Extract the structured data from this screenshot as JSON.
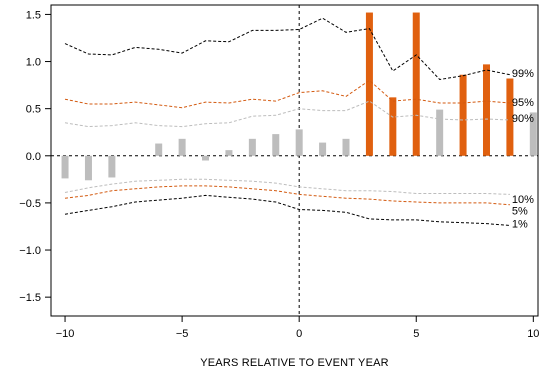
{
  "chart_data": {
    "type": "bar",
    "xlabel": "YEARS RELATIVE TO EVENT YEAR",
    "ylabel": "",
    "xlim": [
      -10.6,
      10.2
    ],
    "ylim": [
      -1.7,
      1.6
    ],
    "xticks": [
      -10,
      -5,
      0,
      5,
      10
    ],
    "xtick_labels": [
      "−10",
      "−5",
      "0",
      "5",
      "10"
    ],
    "yticks": [
      -1.5,
      -1.0,
      -0.5,
      0.0,
      0.5,
      1.0,
      1.5
    ],
    "ytick_labels": [
      "−1.5",
      "−1.0",
      "−0.5",
      "0.0",
      "0.5",
      "1.0",
      "1.5"
    ],
    "colors": {
      "significant": "#e0600f",
      "not_significant": "#bdbdbd",
      "p99": "#000000",
      "p95": "#d35a10",
      "p90": "#bdbdbd",
      "p10": "#bdbdbd",
      "p5": "#d35a10",
      "p1": "#000000"
    },
    "bars": [
      {
        "x": -10,
        "value": -0.24,
        "significant": false
      },
      {
        "x": -9,
        "value": -0.26,
        "significant": false
      },
      {
        "x": -8,
        "value": -0.23,
        "significant": false
      },
      {
        "x": -6,
        "value": 0.13,
        "significant": false
      },
      {
        "x": -5,
        "value": 0.18,
        "significant": false
      },
      {
        "x": -4,
        "value": -0.05,
        "significant": false
      },
      {
        "x": -3,
        "value": 0.06,
        "significant": false
      },
      {
        "x": -2,
        "value": 0.18,
        "significant": false
      },
      {
        "x": -1,
        "value": 0.23,
        "significant": false
      },
      {
        "x": 0,
        "value": 0.28,
        "significant": false
      },
      {
        "x": 1,
        "value": 0.14,
        "significant": false
      },
      {
        "x": 2,
        "value": 0.18,
        "significant": false
      },
      {
        "x": 3,
        "value": 1.52,
        "significant": true
      },
      {
        "x": 4,
        "value": 0.62,
        "significant": true
      },
      {
        "x": 5,
        "value": 1.52,
        "significant": true
      },
      {
        "x": 6,
        "value": 0.49,
        "significant": false
      },
      {
        "x": 7,
        "value": 0.86,
        "significant": true
      },
      {
        "x": 8,
        "value": 0.97,
        "significant": true
      },
      {
        "x": 9,
        "value": 0.82,
        "significant": true
      },
      {
        "x": 10,
        "value": 0.46,
        "significant": false
      }
    ],
    "bands": [
      {
        "label": "99%",
        "style": "p99",
        "x": [
          -10,
          -9,
          -8,
          -7,
          -6,
          -5,
          -4,
          -3,
          -2,
          -1,
          0,
          1,
          2,
          3,
          4,
          5,
          6,
          7,
          8,
          9
        ],
        "y": [
          1.19,
          1.08,
          1.07,
          1.15,
          1.13,
          1.09,
          1.22,
          1.21,
          1.33,
          1.33,
          1.34,
          1.46,
          1.31,
          1.35,
          0.9,
          1.07,
          0.81,
          0.85,
          0.91,
          0.86
        ]
      },
      {
        "label": "95%",
        "style": "p95",
        "x": [
          -10,
          -9,
          -8,
          -7,
          -6,
          -5,
          -4,
          -3,
          -2,
          -1,
          0,
          1,
          2,
          3,
          4,
          5,
          6,
          7,
          8,
          9
        ],
        "y": [
          0.6,
          0.55,
          0.55,
          0.57,
          0.54,
          0.51,
          0.57,
          0.56,
          0.6,
          0.58,
          0.67,
          0.69,
          0.63,
          0.8,
          0.58,
          0.6,
          0.56,
          0.56,
          0.58,
          0.56
        ]
      },
      {
        "label": "90%",
        "style": "p90",
        "x": [
          -10,
          -9,
          -8,
          -7,
          -6,
          -5,
          -4,
          -3,
          -2,
          -1,
          0,
          1,
          2,
          3,
          4,
          5,
          6,
          7,
          8,
          9
        ],
        "y": [
          0.35,
          0.31,
          0.32,
          0.35,
          0.32,
          0.31,
          0.34,
          0.35,
          0.42,
          0.43,
          0.5,
          0.48,
          0.48,
          0.58,
          0.41,
          0.43,
          0.39,
          0.38,
          0.39,
          0.38
        ]
      },
      {
        "label": "10%",
        "style": "p10",
        "x": [
          -10,
          -9,
          -8,
          -7,
          -6,
          -5,
          -4,
          -3,
          -2,
          -1,
          0,
          1,
          2,
          3,
          4,
          5,
          6,
          7,
          8,
          9
        ],
        "y": [
          -0.39,
          -0.34,
          -0.3,
          -0.27,
          -0.26,
          -0.25,
          -0.25,
          -0.26,
          -0.27,
          -0.29,
          -0.33,
          -0.35,
          -0.37,
          -0.37,
          -0.38,
          -0.4,
          -0.4,
          -0.4,
          -0.4,
          -0.41
        ]
      },
      {
        "label": "5%",
        "style": "p5",
        "x": [
          -10,
          -9,
          -8,
          -7,
          -6,
          -5,
          -4,
          -3,
          -2,
          -1,
          0,
          1,
          2,
          3,
          4,
          5,
          6,
          7,
          8,
          9
        ],
        "y": [
          -0.45,
          -0.42,
          -0.37,
          -0.35,
          -0.33,
          -0.32,
          -0.32,
          -0.33,
          -0.35,
          -0.37,
          -0.41,
          -0.43,
          -0.45,
          -0.46,
          -0.48,
          -0.49,
          -0.5,
          -0.5,
          -0.5,
          -0.52
        ]
      },
      {
        "label": "1%",
        "style": "p1",
        "x": [
          -10,
          -9,
          -8,
          -7,
          -6,
          -5,
          -4,
          -3,
          -2,
          -1,
          0,
          1,
          2,
          3,
          4,
          5,
          6,
          7,
          8,
          9
        ],
        "y": [
          -0.62,
          -0.58,
          -0.54,
          -0.49,
          -0.47,
          -0.45,
          -0.42,
          -0.44,
          -0.46,
          -0.49,
          -0.57,
          -0.58,
          -0.6,
          -0.67,
          -0.68,
          -0.68,
          -0.7,
          -0.71,
          -0.72,
          -0.74
        ]
      }
    ],
    "band_labels": [
      "99%",
      "95%",
      "90%",
      "10%",
      "5%",
      "1%"
    ],
    "band_label_values": [
      0.88,
      0.57,
      0.4,
      -0.46,
      -0.58,
      -0.72
    ],
    "reference_lines": {
      "vertical_x": 0,
      "horizontal_y": 0
    },
    "grid": false,
    "legend": "none"
  }
}
